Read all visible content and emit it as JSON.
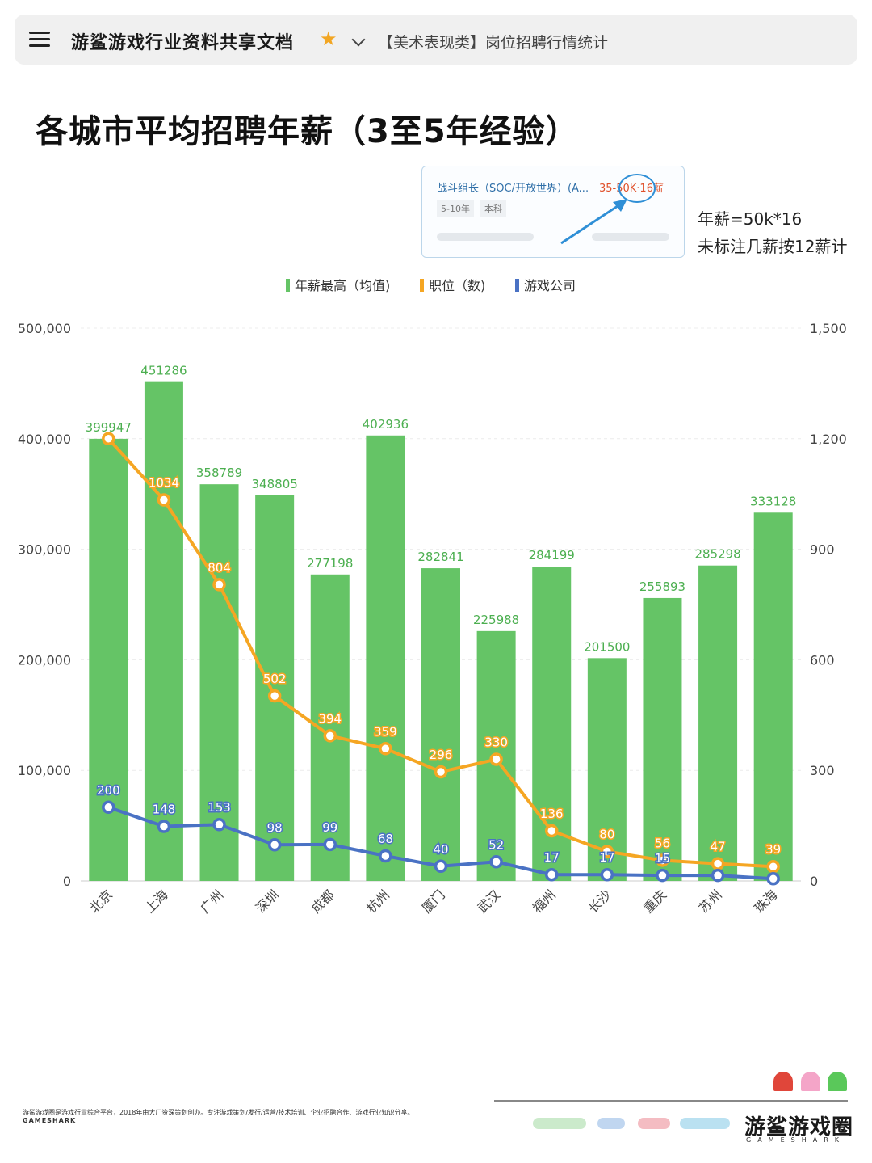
{
  "header": {
    "app_title": "游鲨游戏行业资料共享文档",
    "page_tab": "【美术表现类】岗位招聘行情统计"
  },
  "main_title": "各城市平均招聘年薪（3至5年经验）",
  "job_card": {
    "title": "战斗组长（SOC/开放世界）(A...",
    "salary": "35-50K·16薪",
    "tags": [
      "5-10年",
      "本科"
    ]
  },
  "notes": [
    "年薪=50k*16",
    "未标注几薪按12薪计"
  ],
  "chart_data": {
    "type": "bar",
    "categories": [
      "北京",
      "上海",
      "广州",
      "深圳",
      "成都",
      "杭州",
      "厦门",
      "武汉",
      "福州",
      "长沙",
      "重庆",
      "苏州",
      "珠海"
    ],
    "series": [
      {
        "name": "年薪最高（均值)",
        "type": "bar",
        "axis": "left",
        "color": "#65c466",
        "values": [
          399947,
          451286,
          358789,
          348805,
          277198,
          402936,
          282841,
          225988,
          284199,
          201500,
          255893,
          285298,
          333128
        ]
      },
      {
        "name": "职位（数)",
        "type": "line",
        "axis": "right",
        "color": "#f5a623",
        "values": [
          1200,
          1034,
          804,
          502,
          394,
          359,
          296,
          330,
          136,
          80,
          56,
          47,
          39
        ]
      },
      {
        "name": "游戏公司",
        "type": "line",
        "axis": "right",
        "color": "#4a72c4",
        "values": [
          200,
          148,
          153,
          98,
          99,
          68,
          40,
          52,
          17,
          17,
          15,
          15,
          6
        ]
      }
    ],
    "left_axis": {
      "min": 0,
      "max": 500000,
      "ticks": [
        "0",
        "100,000",
        "200,000",
        "300,000",
        "400,000",
        "500,000"
      ]
    },
    "right_axis": {
      "min": 0,
      "max": 1500,
      "ticks": [
        "0",
        "300",
        "600",
        "900",
        "1,200",
        "1,500"
      ]
    },
    "point_labels": {
      "职位（数)": [
        "",
        "1034",
        "804",
        "502",
        "394",
        "359",
        "296",
        "330",
        "136",
        "80",
        "56",
        "47",
        "39"
      ],
      "游戏公司": [
        "200",
        "148",
        "153",
        "98",
        "99",
        "68",
        "40",
        "52",
        "17",
        "17",
        "15",
        "",
        ""
      ]
    },
    "grid": true,
    "legend_position": "top-center"
  },
  "footer": {
    "description": "游鲨游戏圈是游戏行业综合平台，2018年由大厂资深策划创办。专注游戏策划/发行/运营/技术培训、企业招聘合作、游戏行业知识分享。",
    "brand": "GAMESHARK",
    "logo_text": "游鲨游戏圈",
    "logo_sub": "GAMESHARK"
  },
  "colors": {
    "bar": "#65c466",
    "jobs_line": "#f5a623",
    "companies_line": "#4a72c4",
    "star": "#f2a623"
  }
}
